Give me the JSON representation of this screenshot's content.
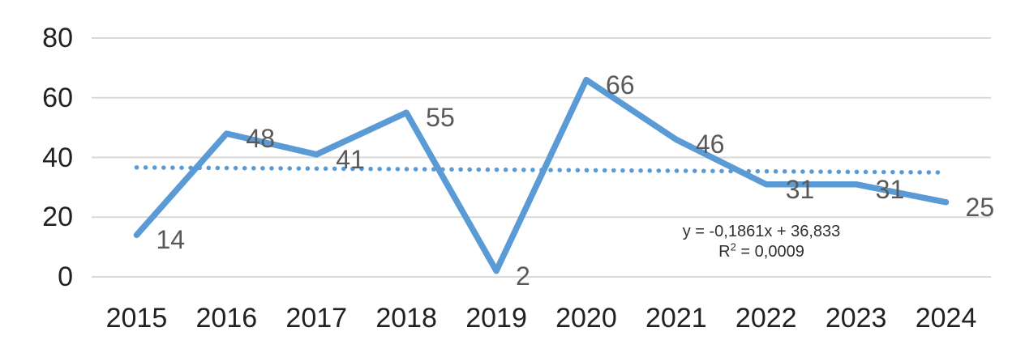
{
  "chart_data": {
    "type": "line",
    "title": "",
    "xlabel": "",
    "ylabel": "",
    "categories": [
      "2015",
      "2016",
      "2017",
      "2018",
      "2019",
      "2020",
      "2021",
      "2022",
      "2023",
      "2024"
    ],
    "values": [
      14,
      48,
      41,
      55,
      2,
      66,
      46,
      31,
      31,
      25
    ],
    "data_labels": [
      "14",
      "48",
      "41",
      "55",
      "2",
      "66",
      "46",
      "31",
      "31",
      "25"
    ],
    "ylim": [
      0,
      80
    ],
    "yticks": [
      0,
      20,
      40,
      60,
      80
    ],
    "grid": "horizontal",
    "legend": "none",
    "trendline": {
      "type": "linear",
      "style": "dotted",
      "slope": -0.1861,
      "intercept": 36.833,
      "equation": "y = -0,1861x + 36,833",
      "r2_prefix": "R",
      "r2_sup": "2",
      "r2_value": " = 0,0009"
    },
    "colors": {
      "series": "#5B9BD5",
      "trendline": "#5B9BD5",
      "gridline": "#D9D9D9",
      "axis_label": "#212121",
      "data_label": "#595959",
      "equation": "#303030"
    }
  }
}
